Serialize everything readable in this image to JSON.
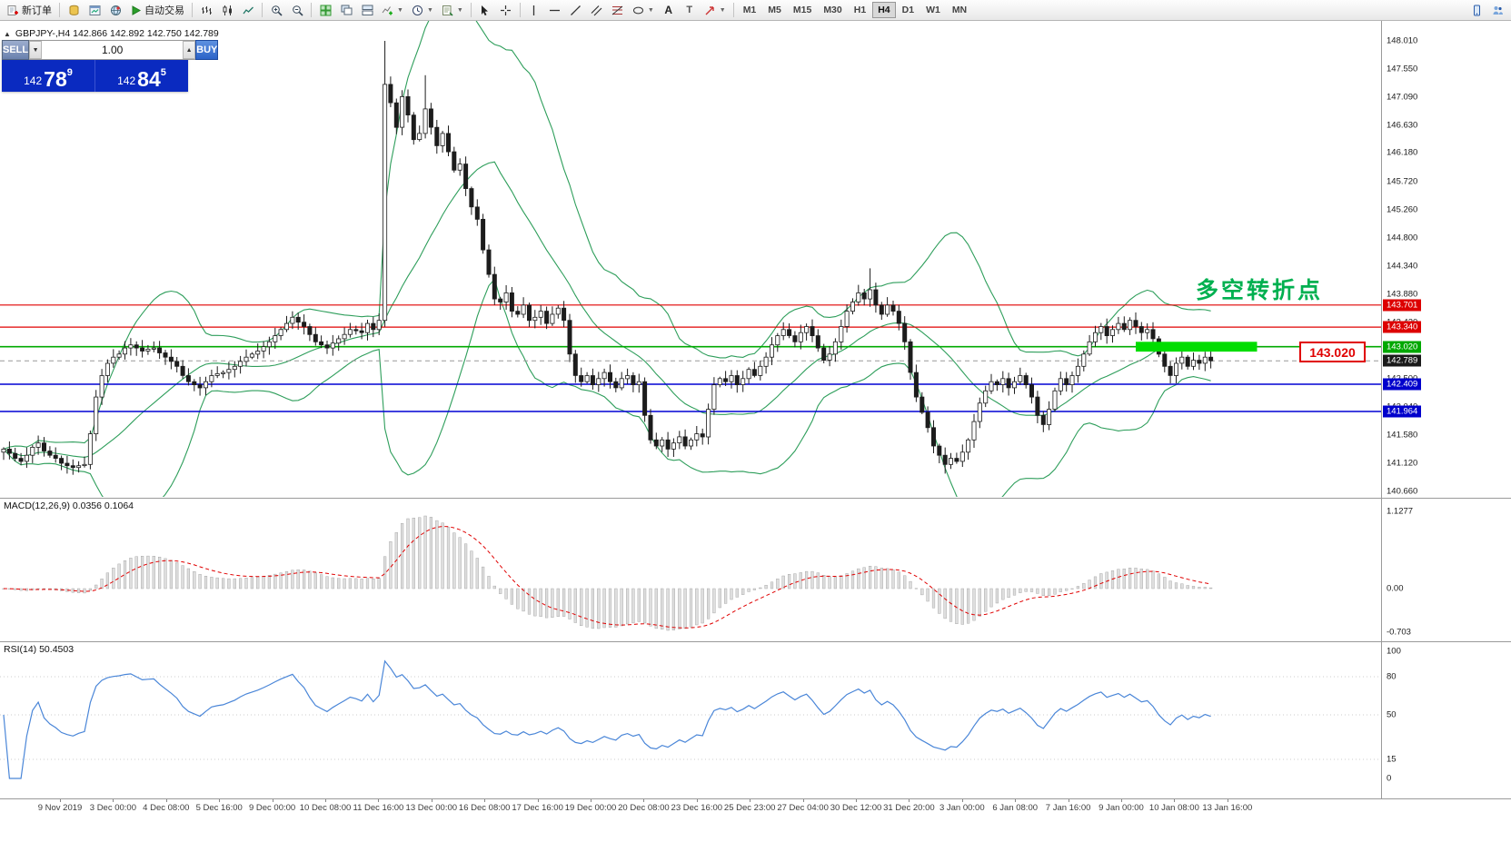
{
  "toolbar": {
    "new_order_label": "新订单",
    "auto_trading_label": "自动交易",
    "timeframes": [
      "M1",
      "M5",
      "M15",
      "M30",
      "H1",
      "H4",
      "D1",
      "W1",
      "MN"
    ],
    "active_timeframe": "H4"
  },
  "symbol_bar": {
    "text": "GBPJPY-,H4  142.866 142.892 142.750 142.789"
  },
  "trade_panel": {
    "sell_label": "SELL",
    "buy_label": "BUY",
    "lot_size": "1.00",
    "sell": {
      "prefix": "142",
      "big": "78",
      "sup": "9"
    },
    "buy": {
      "prefix": "142",
      "big": "84",
      "sup": "5"
    }
  },
  "annotation": {
    "text": "多空转折点",
    "color": "#00b050"
  },
  "callout": {
    "text": "143.020",
    "color": "#e00000"
  },
  "indicators": {
    "macd_label": "MACD(12,26,9) 0.0356 0.1064",
    "macd_axis": [
      "1.1277",
      "0.00",
      "-0.703"
    ],
    "rsi_label": "RSI(14) 50.4503",
    "rsi_axis": [
      "100",
      "80",
      "50",
      "15",
      "0"
    ]
  },
  "chart_data": {
    "type": "candlestick+indicators",
    "symbol": "GBPJPY-",
    "timeframe": "H4",
    "quote": {
      "open": 142.866,
      "high": 142.892,
      "low": 142.75,
      "close": 142.789
    },
    "price_axis_ticks": [
      148.01,
      147.55,
      147.09,
      146.63,
      146.18,
      145.72,
      145.26,
      144.8,
      144.34,
      143.88,
      143.42,
      142.96,
      142.5,
      142.04,
      141.58,
      141.12,
      140.66
    ],
    "price_labels": [
      {
        "price": 143.701,
        "bg": "#dd0000"
      },
      {
        "price": 143.34,
        "bg": "#dd0000"
      },
      {
        "price": 143.02,
        "bg": "#00a800"
      },
      {
        "price": 142.789,
        "bg": "#1a1a1a"
      },
      {
        "price": 142.409,
        "bg": "#0000cc"
      },
      {
        "price": 141.964,
        "bg": "#0000cc"
      }
    ],
    "level_lines": [
      {
        "price": 143.701,
        "color": "#e00000",
        "type": "solid",
        "width": 1.2
      },
      {
        "price": 143.34,
        "color": "#e00000",
        "type": "solid",
        "width": 1.2
      },
      {
        "price": 143.02,
        "color": "#00aa00",
        "type": "solid",
        "width": 1.6
      },
      {
        "price": 142.789,
        "color": "#999999",
        "type": "dashed",
        "width": 1
      },
      {
        "price": 142.409,
        "color": "#0000d4",
        "type": "solid",
        "width": 1.6
      },
      {
        "price": 141.964,
        "color": "#0000d4",
        "type": "solid",
        "width": 1.6
      }
    ],
    "highlight_rect": {
      "price": 143.02,
      "bar_start": 196,
      "bar_end": 217,
      "half_height_price": 0.08,
      "color": "#00dd00"
    },
    "bollinger_period": 20,
    "bollinger_dev": 2,
    "rsi_levels": [
      80,
      50,
      15
    ],
    "colors": {
      "bollinger": "#2e9e5b",
      "up_candle": "#ffffff",
      "down_candle": "#1c1c1c",
      "candle_border": "#1c1c1c",
      "macd_hist": "#dedede",
      "macd_hist_border": "#9b9b9b",
      "macd_signal": "#e00000",
      "rsi_line": "#4a86d8"
    },
    "closes": [
      141.35,
      141.28,
      141.2,
      141.15,
      141.25,
      141.38,
      141.45,
      141.32,
      141.25,
      141.2,
      141.12,
      141.08,
      141.05,
      141.08,
      141.1,
      141.6,
      142.2,
      142.55,
      142.75,
      142.85,
      142.9,
      143.0,
      143.05,
      143.0,
      142.95,
      142.98,
      143.0,
      142.92,
      142.85,
      142.78,
      142.7,
      142.55,
      142.45,
      142.4,
      142.35,
      142.45,
      142.55,
      142.58,
      142.6,
      142.65,
      142.7,
      142.78,
      142.85,
      142.9,
      142.95,
      143.02,
      143.1,
      143.2,
      143.3,
      143.4,
      143.5,
      143.42,
      143.35,
      143.22,
      143.1,
      143.05,
      143.0,
      143.08,
      143.15,
      143.22,
      143.3,
      143.28,
      143.25,
      143.4,
      143.3,
      143.45,
      147.3,
      147.0,
      146.6,
      147.1,
      146.8,
      146.4,
      146.5,
      146.9,
      146.6,
      146.3,
      146.5,
      146.2,
      145.9,
      146.0,
      145.6,
      145.3,
      145.1,
      144.6,
      144.2,
      143.8,
      143.75,
      143.9,
      143.6,
      143.55,
      143.7,
      143.45,
      143.5,
      143.6,
      143.4,
      143.55,
      143.65,
      143.45,
      142.9,
      142.55,
      142.45,
      142.55,
      142.4,
      142.5,
      142.6,
      142.45,
      142.35,
      142.5,
      142.55,
      142.4,
      142.45,
      141.9,
      141.5,
      141.4,
      141.5,
      141.35,
      141.45,
      141.55,
      141.4,
      141.5,
      141.6,
      141.55,
      142.0,
      142.4,
      142.5,
      142.45,
      142.55,
      142.4,
      142.5,
      142.65,
      142.55,
      142.7,
      142.85,
      143.05,
      143.2,
      143.3,
      143.2,
      143.1,
      143.25,
      143.35,
      143.2,
      143.0,
      142.8,
      142.9,
      143.1,
      143.35,
      143.6,
      143.75,
      143.9,
      143.8,
      143.95,
      143.7,
      143.55,
      143.7,
      143.6,
      143.4,
      143.1,
      142.6,
      142.2,
      141.95,
      141.7,
      141.4,
      141.25,
      141.1,
      141.2,
      141.15,
      141.3,
      141.5,
      141.8,
      142.1,
      142.3,
      142.45,
      142.4,
      142.5,
      142.35,
      142.45,
      142.55,
      142.4,
      142.2,
      141.9,
      141.75,
      142.0,
      142.3,
      142.5,
      142.4,
      142.55,
      142.7,
      142.9,
      143.1,
      143.25,
      143.35,
      143.2,
      143.3,
      143.4,
      143.3,
      143.45,
      143.35,
      143.25,
      143.3,
      143.15,
      142.9,
      142.7,
      142.55,
      142.75,
      142.85,
      142.7,
      142.8,
      142.75,
      142.85,
      142.79
    ],
    "wick_overrides": {
      "15": {
        "low": 141.02
      },
      "66": {
        "high": 148.01,
        "low": 143.35
      },
      "73": {
        "high": 147.45
      },
      "150": {
        "high": 144.3
      },
      "163": {
        "low": 140.95
      }
    },
    "time_labels": [
      "9 Nov 2019",
      "3 Dec 00:00",
      "4 Dec 08:00",
      "5 Dec 16:00",
      "9 Dec 00:00",
      "10 Dec 08:00",
      "11 Dec 16:00",
      "13 Dec 00:00",
      "16 Dec 08:00",
      "17 Dec 16:00",
      "19 Dec 00:00",
      "20 Dec 08:00",
      "23 Dec 16:00",
      "25 Dec 23:00",
      "27 Dec 04:00",
      "30 Dec 12:00",
      "31 Dec 20:00",
      "3 Jan 00:00",
      "6 Jan 08:00",
      "7 Jan 16:00",
      "9 Jan 00:00",
      "10 Jan 08:00",
      "13 Jan 16:00"
    ]
  }
}
